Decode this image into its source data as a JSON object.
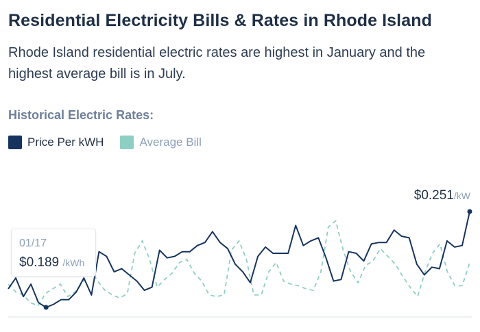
{
  "title": "Residential Electricity Bills & Rates in Rhode Island",
  "subtitle": "Rhode Island residential electric rates are highest in January and the highest average bill is in July.",
  "section_label": "Historical Electric Rates:",
  "legend": {
    "price": {
      "label": "Price Per kWH",
      "color": "#16335e"
    },
    "bill": {
      "label": "Average Bill",
      "color": "#8fcfc3"
    }
  },
  "end_label": {
    "value": "$0.251",
    "unit": "/kW"
  },
  "tooltip": {
    "date": "01/17",
    "value": "$0.189",
    "unit": "/kWh"
  },
  "chart_data": {
    "type": "line",
    "series": [
      {
        "name": "Price Per kWH",
        "values": [
          0.201,
          0.208,
          0.196,
          0.204,
          0.192,
          0.189,
          0.191,
          0.194,
          0.194,
          0.199,
          0.208,
          0.197,
          0.225,
          0.222,
          0.212,
          0.214,
          0.21,
          0.206,
          0.2,
          0.202,
          0.226,
          0.221,
          0.222,
          0.225,
          0.225,
          0.229,
          0.231,
          0.238,
          0.231,
          0.227,
          0.217,
          0.212,
          0.205,
          0.222,
          0.228,
          0.224,
          0.224,
          0.224,
          0.242,
          0.229,
          0.232,
          0.234,
          0.221,
          0.206,
          0.207,
          0.225,
          0.224,
          0.219,
          0.23,
          0.231,
          0.231,
          0.239,
          0.235,
          0.234,
          0.217,
          0.21,
          0.215,
          0.214,
          0.232,
          0.228,
          0.229,
          0.251
        ]
      },
      {
        "name": "Average Bill",
        "values": [
          0.204,
          0.199,
          0.197,
          0.192,
          0.19,
          0.198,
          0.201,
          0.204,
          0.196,
          0.199,
          0.205,
          0.214,
          0.206,
          0.2,
          0.197,
          0.195,
          0.198,
          0.224,
          0.232,
          0.22,
          0.202,
          0.207,
          0.211,
          0.218,
          0.22,
          0.211,
          0.206,
          0.197,
          0.196,
          0.197,
          0.226,
          0.232,
          0.22,
          0.197,
          0.197,
          0.212,
          0.218,
          0.206,
          0.204,
          0.203,
          0.201,
          0.2,
          0.212,
          0.241,
          0.245,
          0.226,
          0.212,
          0.205,
          0.216,
          0.219,
          0.227,
          0.222,
          0.217,
          0.209,
          0.202,
          0.196,
          0.212,
          0.224,
          0.23,
          0.212,
          0.203,
          0.203,
          0.218
        ]
      }
    ],
    "ylim": [
      0.185,
      0.255
    ]
  }
}
